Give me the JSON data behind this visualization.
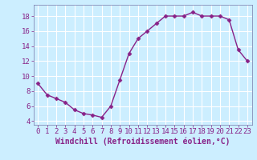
{
  "x": [
    0,
    1,
    2,
    3,
    4,
    5,
    6,
    7,
    8,
    9,
    10,
    11,
    12,
    13,
    14,
    15,
    16,
    17,
    18,
    19,
    20,
    21,
    22,
    23
  ],
  "y": [
    9,
    7.5,
    7,
    6.5,
    5.5,
    5,
    4.8,
    4.5,
    6,
    9.5,
    13,
    15,
    16,
    17,
    18,
    18,
    18,
    18.5,
    18,
    18,
    18,
    17.5,
    13.5,
    12
  ],
  "line_color": "#882288",
  "marker": "D",
  "marker_size": 2.5,
  "bg_color": "#cceeff",
  "grid_color": "#ffffff",
  "xlabel": "Windchill (Refroidissement éolien,°C)",
  "xlabel_fontsize": 7,
  "tick_fontsize": 6.5,
  "ylim": [
    3.5,
    19.5
  ],
  "yticks": [
    4,
    6,
    8,
    10,
    12,
    14,
    16,
    18
  ],
  "xlim": [
    -0.5,
    23.5
  ],
  "xticks": [
    0,
    1,
    2,
    3,
    4,
    5,
    6,
    7,
    8,
    9,
    10,
    11,
    12,
    13,
    14,
    15,
    16,
    17,
    18,
    19,
    20,
    21,
    22,
    23
  ],
  "spine_color": "#7777aa",
  "line_width": 1.0
}
